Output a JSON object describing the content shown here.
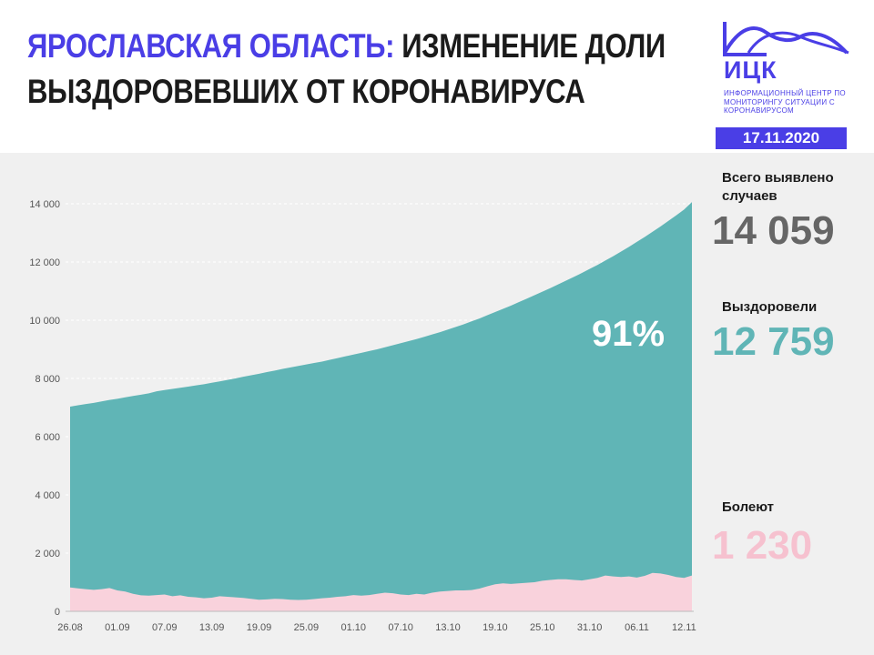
{
  "header": {
    "title_accent": "ЯРОСЛАВСКАЯ ОБЛАСТЬ:",
    "title_rest_line1": "ИЗМЕНЕНИЕ ДОЛИ",
    "title_line2": "ВЫЗДОРОВЕВШИХ ОТ КОРОНАВИРУСА"
  },
  "logo": {
    "name": "ИЦК",
    "subtitle": "ИНФОРМАЦИОННЫЙ ЦЕНТР ПО МОНИТОРИНГУ СИТУАЦИИ С КОРОНАВИРУСОМ"
  },
  "date": "17.11.2020",
  "stats": {
    "total_label": "Всего выявлено случаев",
    "total_value": "14 059",
    "recovered_label": "Выздоровели",
    "recovered_value": "12 759",
    "sick_label": "Болеют",
    "sick_value": "1 230"
  },
  "colors": {
    "accent": "#4a3ee6",
    "recovered": "#60b5b6",
    "sick": "#f9d2dc",
    "total_value": "#666666",
    "sick_value": "#f6c1cf",
    "background_panel": "#f0f0f0"
  },
  "chart_data": {
    "type": "area",
    "annotation": "91%",
    "ylim": [
      0,
      14000
    ],
    "y_ticks": [
      0,
      2000,
      4000,
      6000,
      8000,
      10000,
      12000,
      14000
    ],
    "y_tick_labels": [
      "0",
      "2 000",
      "4 000",
      "6 000",
      "8 000",
      "10 000",
      "12 000",
      "14 000"
    ],
    "x_tick_labels": [
      "26.08",
      "01.09",
      "07.09",
      "13.09",
      "19.09",
      "25.09",
      "01.10",
      "07.10",
      "13.10",
      "19.10",
      "25.10",
      "31.10",
      "06.11",
      "12.11"
    ],
    "x_tick_index": [
      0,
      6,
      12,
      18,
      24,
      30,
      36,
      42,
      48,
      54,
      60,
      66,
      72,
      78
    ],
    "series": [
      {
        "values": [
          7030,
          7080,
          7120,
          7160,
          7210,
          7260,
          7300,
          7350,
          7400,
          7440,
          7490,
          7560,
          7600,
          7640,
          7680,
          7720,
          7760,
          7800,
          7850,
          7900,
          7950,
          8000,
          8060,
          8110,
          8160,
          8220,
          8270,
          8330,
          8380,
          8430,
          8480,
          8530,
          8580,
          8640,
          8700,
          8760,
          8820,
          8880,
          8940,
          9000,
          9070,
          9140,
          9210,
          9280,
          9350,
          9430,
          9510,
          9590,
          9680,
          9770,
          9860,
          9960,
          10060,
          10170,
          10280,
          10390,
          10500,
          10620,
          10740,
          10860,
          10980,
          11100,
          11230,
          11360,
          11490,
          11620,
          11760,
          11900,
          12050,
          12200,
          12360,
          12520,
          12690,
          12860,
          13040,
          13220,
          13410,
          13600,
          13800,
          14059
        ]
      },
      {
        "values": [
          820,
          790,
          760,
          740,
          760,
          800,
          720,
          680,
          600,
          550,
          540,
          560,
          580,
          520,
          550,
          500,
          480,
          450,
          470,
          520,
          500,
          480,
          460,
          430,
          400,
          410,
          430,
          420,
          400,
          390,
          400,
          420,
          450,
          470,
          500,
          520,
          560,
          540,
          560,
          600,
          640,
          620,
          580,
          560,
          600,
          580,
          640,
          680,
          700,
          720,
          720,
          730,
          780,
          860,
          930,
          960,
          940,
          960,
          980,
          1000,
          1050,
          1080,
          1100,
          1100,
          1080,
          1060,
          1100,
          1150,
          1230,
          1200,
          1180,
          1200,
          1160,
          1220,
          1320,
          1300,
          1250,
          1180,
          1150,
          1230
        ]
      }
    ]
  }
}
